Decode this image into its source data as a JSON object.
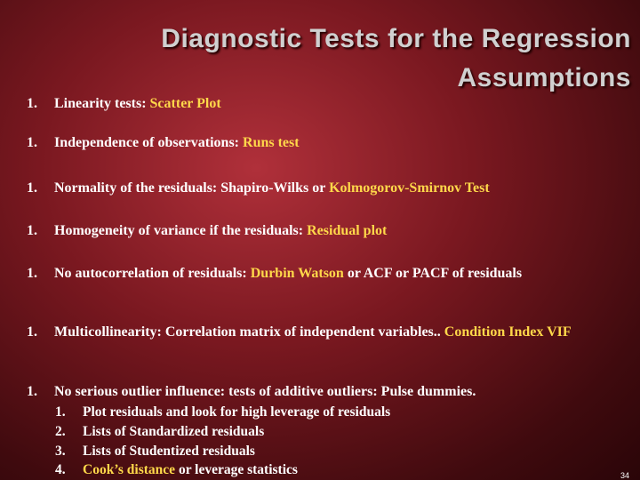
{
  "title": "Diagnostic Tests for the Regression Assumptions",
  "items": [
    {
      "number": "1.",
      "segments": [
        {
          "text": "Linearity tests:  ",
          "highlight": false
        },
        {
          "text": "Scatter Plot",
          "highlight": true
        }
      ]
    },
    {
      "number": "1.",
      "segments": [
        {
          "text": "Independence of observations: ",
          "highlight": false
        },
        {
          "text": "Runs test",
          "highlight": true
        }
      ]
    },
    {
      "number": "1.",
      "segments": [
        {
          "text": "Normality of the residuals: Shapiro-Wilks or ",
          "highlight": false
        },
        {
          "text": "Kolmogorov-Smirnov Test",
          "highlight": true
        }
      ]
    },
    {
      "number": "1.",
      "segments": [
        {
          "text": "Homogeneity of variance if the residuals:   ",
          "highlight": false
        },
        {
          "text": "Residual plot",
          "highlight": true
        }
      ]
    },
    {
      "number": "1.",
      "segments": [
        {
          "text": "No autocorrelation of residuals: ",
          "highlight": false
        },
        {
          "text": "Durbin Watson",
          "highlight": true
        },
        {
          "text": " or ACF or PACF of residuals",
          "highlight": false
        }
      ]
    },
    {
      "number": "1.",
      "segments": [
        {
          "text": "Multicollinearity:  Correlation matrix of independent variables.. ",
          "highlight": false
        },
        {
          "text": "Condition Index VIF",
          "highlight": true
        }
      ]
    },
    {
      "number": "1.",
      "segments": [
        {
          "text": "No serious outlier influence:  tests of additive outliers:   Pulse dummies.",
          "highlight": false
        }
      ]
    }
  ],
  "subitems": [
    {
      "number": "1.",
      "segments": [
        {
          "text": "Plot residuals and look for high leverage of residuals",
          "highlight": false
        }
      ]
    },
    {
      "number": "2.",
      "segments": [
        {
          "text": "Lists of Standardized residuals",
          "highlight": false
        }
      ]
    },
    {
      "number": "3.",
      "segments": [
        {
          "text": "Lists of Studentized residuals",
          "highlight": false
        }
      ]
    },
    {
      "number": "4.",
      "segments": [
        {
          "text": "Cook’s distance",
          "highlight": true
        },
        {
          "text": " or leverage statistics",
          "highlight": false
        }
      ]
    }
  ],
  "page_number": "34"
}
